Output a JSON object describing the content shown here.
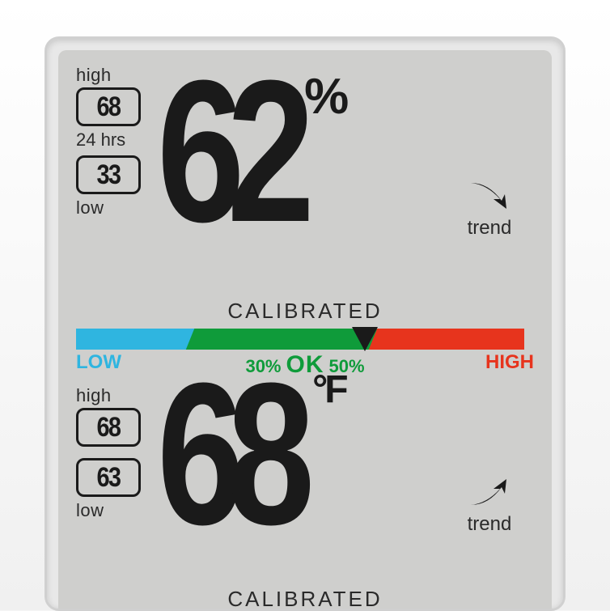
{
  "device": {
    "screen_bg": "#cfcfcd",
    "frame_bg": "#e8e8e8",
    "text_color": "#2a2a2a",
    "digit_color": "#1a1a1a"
  },
  "humidity": {
    "label_high": "high",
    "high_value": "68",
    "period_label": "24 hrs",
    "low_value": "33",
    "label_low": "low",
    "main_value": "62",
    "unit": "%",
    "trend_label": "trend",
    "trend_direction": "down",
    "calibrated_label": "CALIBRATED"
  },
  "comfort_bar": {
    "low_label": "LOW",
    "low_color": "#2fb5e0",
    "ok_color": "#0f9b3a",
    "high_color": "#e7341d",
    "ok_low_pct": "30%",
    "ok_label": "OK",
    "ok_high_pct": "50%",
    "high_label": "HIGH",
    "marker_position_pct": 63
  },
  "temperature": {
    "label_high": "high",
    "high_value": "68",
    "low_value": "63",
    "label_low": "low",
    "main_value": "68",
    "unit": "°F",
    "trend_label": "trend",
    "trend_direction": "up",
    "calibrated_label": "CALIBRATED"
  }
}
